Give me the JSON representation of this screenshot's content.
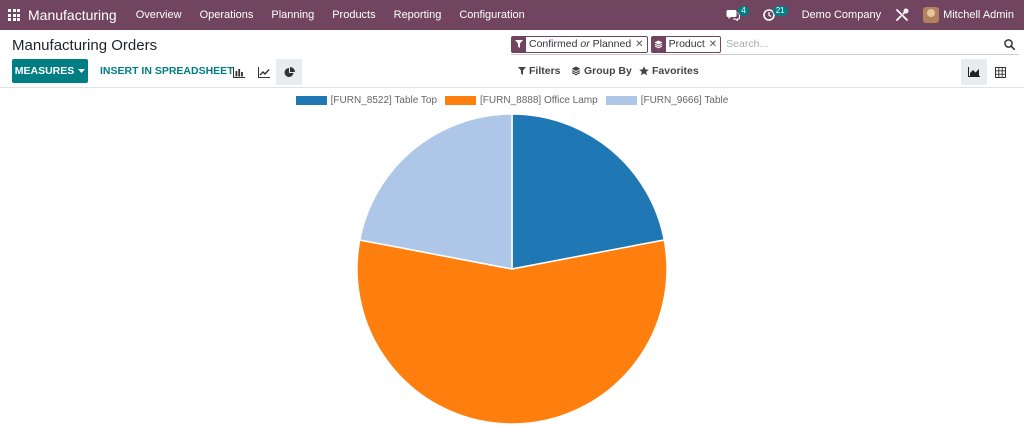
{
  "navbar": {
    "brand": "Manufacturing",
    "menu": [
      "Overview",
      "Operations",
      "Planning",
      "Products",
      "Reporting",
      "Configuration"
    ],
    "messages_count": "4",
    "activities_count": "21",
    "company": "Demo Company",
    "user": "Mitchell Admin",
    "bg_color": "#71445f"
  },
  "control_panel": {
    "title": "Manufacturing Orders",
    "facets": [
      {
        "icon": "filter-icon",
        "text_a": "Confirmed",
        "text_or": "or",
        "text_b": "Planned"
      },
      {
        "icon": "layers-icon",
        "text": "Product"
      }
    ],
    "search_placeholder": "Search...",
    "measures_label": "MEASURES",
    "spreadsheet_label": "INSERT IN SPREADSHEET",
    "filters_label": "Filters",
    "groupby_label": "Group By",
    "favorites_label": "Favorites",
    "accent_color": "#017e84"
  },
  "chart_data": {
    "type": "pie",
    "labels": [
      "[FURN_8522] Table Top",
      "[FURN_8888] Office Lamp",
      "[FURN_9666] Table"
    ],
    "values": [
      22,
      56,
      22
    ],
    "colors": [
      "#1f77b4",
      "#ff7f0e",
      "#aec7e8"
    ],
    "legend_position": "top-center"
  }
}
